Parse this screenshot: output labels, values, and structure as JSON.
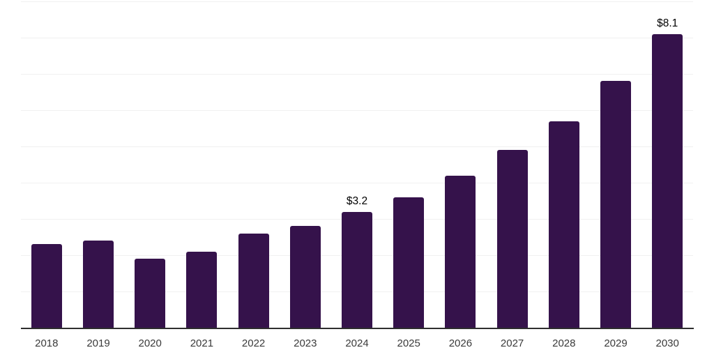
{
  "chart_data": {
    "type": "bar",
    "categories": [
      "2018",
      "2019",
      "2020",
      "2021",
      "2022",
      "2023",
      "2024",
      "2025",
      "2026",
      "2027",
      "2028",
      "2029",
      "2030"
    ],
    "values": [
      2.3,
      2.4,
      1.9,
      2.1,
      2.6,
      2.8,
      3.2,
      3.6,
      4.2,
      4.9,
      5.7,
      6.8,
      8.1
    ],
    "annotations": [
      {
        "category": "2024",
        "label": "$3.2"
      },
      {
        "category": "2030",
        "label": "$8.1"
      }
    ],
    "title": "",
    "xlabel": "",
    "ylabel": "",
    "ylim": [
      0,
      9
    ],
    "grid": true,
    "gridline_interval": 1,
    "legend_position": "none",
    "bar_color": "#35124B",
    "gridline_color": "#f0f0f0",
    "axis_line_color": "#2e2e2e",
    "tick_label_color": "#3a3a3a",
    "data_label_color": "#000000"
  }
}
